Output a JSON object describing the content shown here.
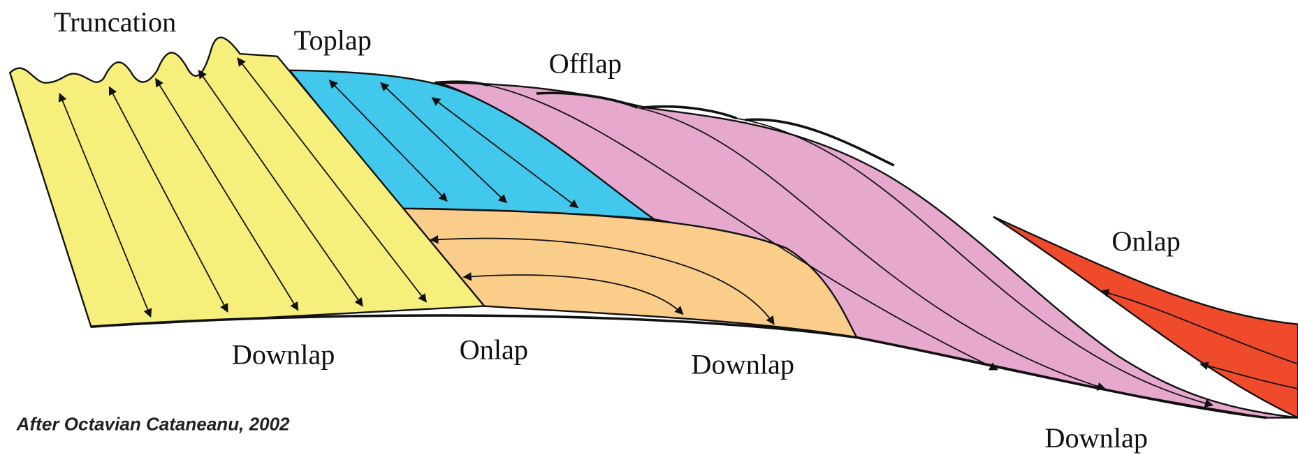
{
  "labels": {
    "truncation": "Truncation",
    "toplap": "Toplap",
    "offlap": "Offlap",
    "onlap_right": "Onlap",
    "downlap_left": "Downlap",
    "onlap_center": "Onlap",
    "downlap_center": "Downlap",
    "downlap_right": "Downlap"
  },
  "credit": "After Octavian Cataneanu, 2002"
}
